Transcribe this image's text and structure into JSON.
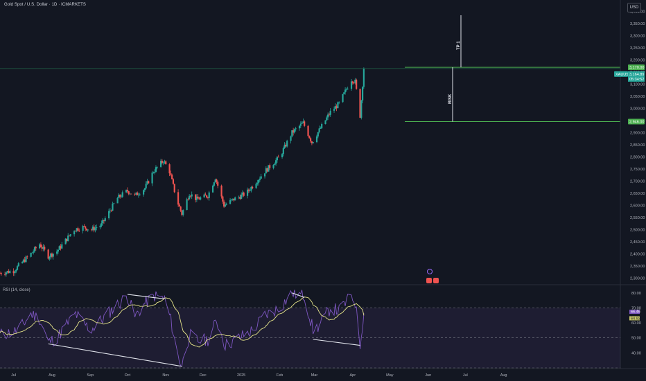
{
  "header": {
    "symbol_title": "Gold Spot / U.S. Dollar · 1D · ICMARKETS",
    "currency": "USD"
  },
  "price_badges": {
    "tp_level": "3,170.00",
    "symbol": "XAUUSD",
    "last_price": "3,164.89",
    "countdown": "05:34:52",
    "stop_level": "2,946.00"
  },
  "annotations": {
    "tp_text": "TP 1",
    "risk_text": "RISK"
  },
  "rsi": {
    "label": "RSI (14, close)",
    "value_badge": "66.46",
    "ma_badge": "64.92"
  },
  "colors": {
    "background": "#131722",
    "up_candle": "#26a69a",
    "down_candle": "#ef5350",
    "rsi_line": "#7e57c2",
    "rsi_ma": "#e6e58a",
    "level_line": "#4caf50"
  },
  "chart_data": [
    {
      "type": "candlestick",
      "ylim": [
        2275,
        3425
      ],
      "y_ticks": [
        2300,
        2350,
        2400,
        2450,
        2500,
        2550,
        2600,
        2650,
        2700,
        2750,
        2800,
        2850,
        2900,
        2950,
        3000,
        3050,
        3100,
        3150,
        3200,
        3250,
        3300,
        3350,
        3400
      ],
      "y_tick_labels": [
        "2,300.00",
        "2,350.00",
        "2,400.00",
        "2,450.00",
        "2,500.00",
        "2,550.00",
        "2,600.00",
        "2,650.00",
        "2,700.00",
        "2,750.00",
        "2,800.00",
        "2,850.00",
        "2,900.00",
        "2,950.00",
        "3,000.00",
        "3,050.00",
        "3,100.00",
        "3,150.00",
        "3,200.00",
        "3,250.00",
        "3,300.00",
        "3,350.00",
        "3,400.00"
      ],
      "x_labels": [
        "Jul",
        "Aug",
        "Sep",
        "Oct",
        "Nov",
        "Dec",
        "2025",
        "Feb",
        "Mar",
        "Apr",
        "May",
        "Jun",
        "Jul",
        "Aug"
      ],
      "close_path": [
        [
          "2024-06-20",
          2320
        ],
        [
          "2024-07-01",
          2330
        ],
        [
          "2024-07-15",
          2400
        ],
        [
          "2024-07-22",
          2440
        ],
        [
          "2024-07-29",
          2390
        ],
        [
          "2024-08-05",
          2410
        ],
        [
          "2024-08-19",
          2500
        ],
        [
          "2024-08-26",
          2510
        ],
        [
          "2024-09-02",
          2500
        ],
        [
          "2024-09-10",
          2520
        ],
        [
          "2024-09-23",
          2630
        ],
        [
          "2024-10-01",
          2660
        ],
        [
          "2024-10-07",
          2640
        ],
        [
          "2024-10-15",
          2670
        ],
        [
          "2024-10-22",
          2740
        ],
        [
          "2024-10-30",
          2785
        ],
        [
          "2024-11-04",
          2740
        ],
        [
          "2024-11-10",
          2620
        ],
        [
          "2024-11-14",
          2565
        ],
        [
          "2024-11-20",
          2650
        ],
        [
          "2024-11-26",
          2625
        ],
        [
          "2024-12-05",
          2640
        ],
        [
          "2024-12-11",
          2715
        ],
        [
          "2024-12-18",
          2600
        ],
        [
          "2024-12-26",
          2625
        ],
        [
          "2025-01-05",
          2650
        ],
        [
          "2025-01-20",
          2740
        ],
        [
          "2025-02-01",
          2800
        ],
        [
          "2025-02-11",
          2900
        ],
        [
          "2025-02-20",
          2940
        ],
        [
          "2025-02-27",
          2860
        ],
        [
          "2025-03-05",
          2910
        ],
        [
          "2025-03-14",
          2985
        ],
        [
          "2025-03-21",
          3020
        ],
        [
          "2025-03-31",
          3120
        ],
        [
          "2025-04-03",
          3110
        ],
        [
          "2025-04-07",
          2970
        ],
        [
          "2025-04-10",
          3164.89
        ]
      ],
      "levels": [
        {
          "name": "TP 1",
          "value": 3170.0
        },
        {
          "name": "RISK",
          "value": 2946.0
        }
      ],
      "last_price": 3164.89
    },
    {
      "type": "line",
      "name": "RSI (14, close)",
      "ylim": [
        30,
        85
      ],
      "y_ticks": [
        40,
        50,
        60,
        70,
        80
      ],
      "y_tick_labels": [
        "40.00",
        "50.00",
        "60.00",
        "70.00",
        "80.00"
      ],
      "bands": {
        "upper": 70,
        "middle": 50,
        "lower": 30
      },
      "rsi_path": [
        [
          "2024-06-20",
          52
        ],
        [
          "2024-07-05",
          55
        ],
        [
          "2024-07-15",
          66
        ],
        [
          "2024-07-22",
          63
        ],
        [
          "2024-07-29",
          47
        ],
        [
          "2024-08-05",
          50
        ],
        [
          "2024-08-12",
          58
        ],
        [
          "2024-08-20",
          66
        ],
        [
          "2024-09-01",
          55
        ],
        [
          "2024-09-10",
          62
        ],
        [
          "2024-09-20",
          70
        ],
        [
          "2024-10-01",
          78
        ],
        [
          "2024-10-07",
          64
        ],
        [
          "2024-10-15",
          73
        ],
        [
          "2024-10-23",
          78
        ],
        [
          "2024-10-31",
          76
        ],
        [
          "2024-11-05",
          62
        ],
        [
          "2024-11-10",
          40
        ],
        [
          "2024-11-14",
          31
        ],
        [
          "2024-11-20",
          52
        ],
        [
          "2024-11-27",
          48
        ],
        [
          "2024-12-06",
          49
        ],
        [
          "2024-12-12",
          62
        ],
        [
          "2024-12-19",
          45
        ],
        [
          "2024-12-30",
          50
        ],
        [
          "2025-01-10",
          55
        ],
        [
          "2025-01-20",
          65
        ],
        [
          "2025-02-01",
          70
        ],
        [
          "2025-02-11",
          80
        ],
        [
          "2025-02-21",
          78
        ],
        [
          "2025-02-28",
          55
        ],
        [
          "2025-03-05",
          58
        ],
        [
          "2025-03-14",
          70
        ],
        [
          "2025-03-21",
          68
        ],
        [
          "2025-03-31",
          78
        ],
        [
          "2025-04-03",
          74
        ],
        [
          "2025-04-07",
          45
        ],
        [
          "2025-04-10",
          66.46
        ]
      ],
      "last_rsi": 66.46,
      "last_ma": 64.92
    }
  ]
}
